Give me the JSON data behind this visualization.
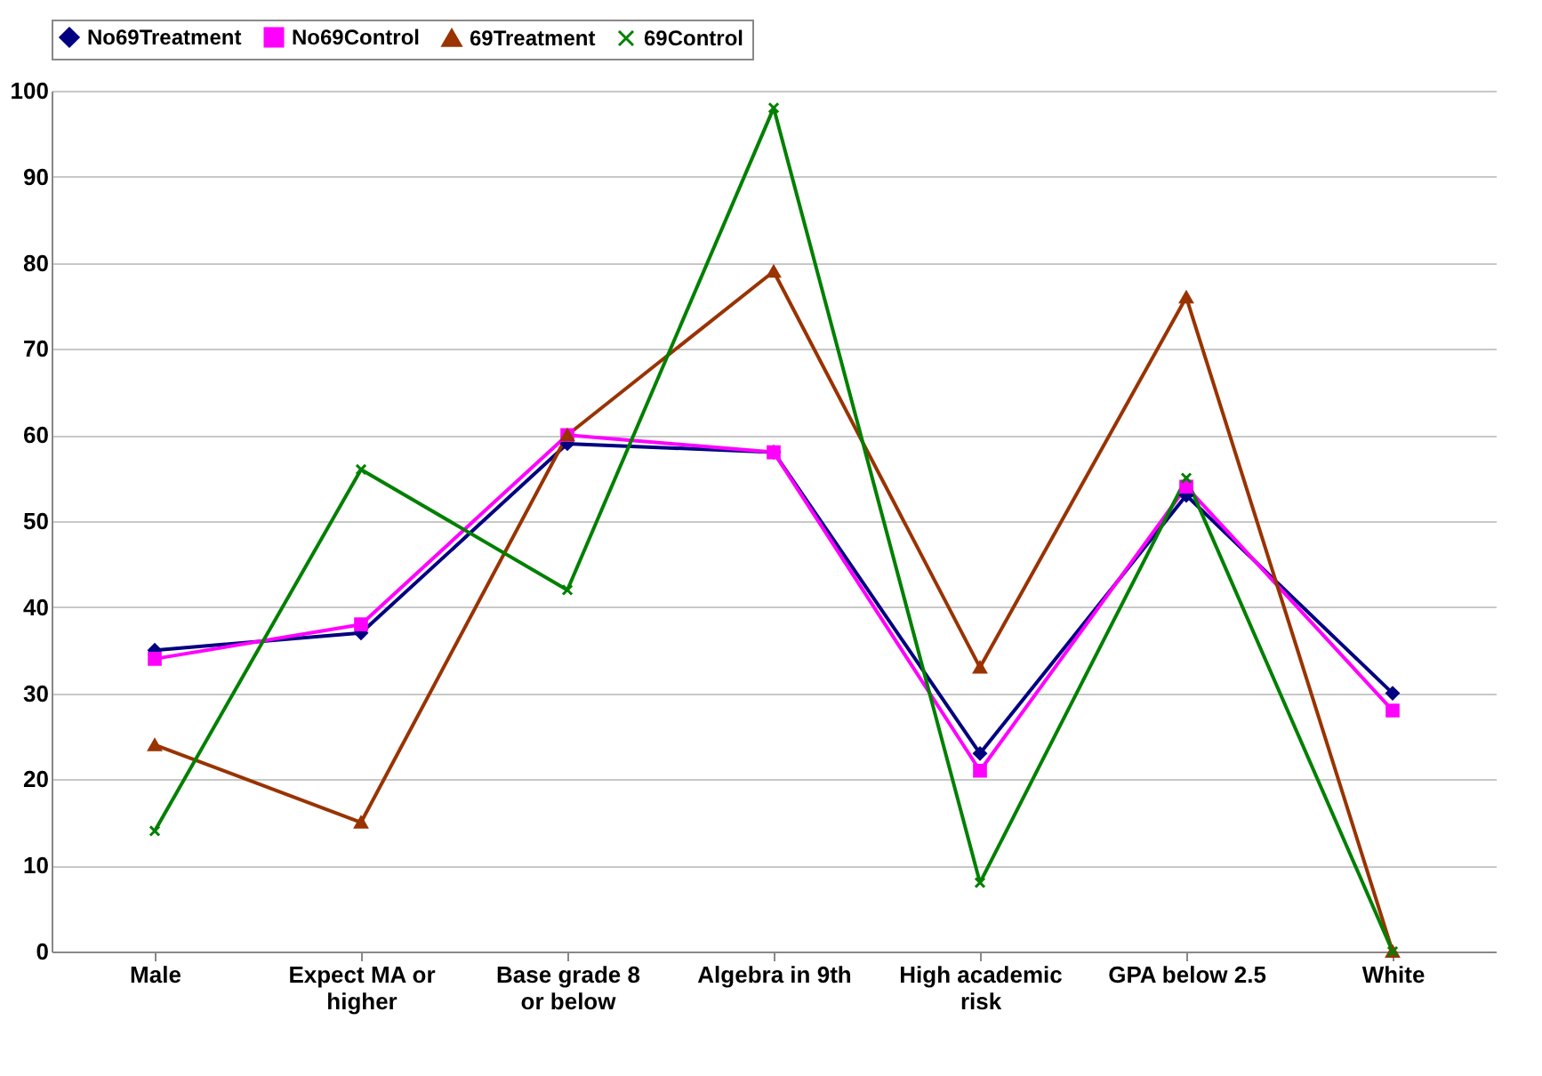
{
  "chart_data": {
    "type": "line",
    "categories": [
      "Male",
      "Expect MA or higher",
      "Base grade 8 or below",
      "Algebra in 9th",
      "High academic risk",
      "GPA below 2.5",
      "White"
    ],
    "series": [
      {
        "name": "No69Treatment",
        "color": "#000080",
        "marker": "diamond",
        "values": [
          35,
          37,
          59,
          58,
          23,
          53,
          30
        ]
      },
      {
        "name": "No69Control",
        "color": "#ff00ff",
        "marker": "square",
        "values": [
          34,
          38,
          60,
          58,
          21,
          54,
          28
        ]
      },
      {
        "name": "69Treatment",
        "color": "#993300",
        "marker": "triangle",
        "values": [
          24,
          15,
          60,
          79,
          33,
          76,
          0
        ]
      },
      {
        "name": "69Control",
        "color": "#008000",
        "marker": "cross",
        "values": [
          14,
          56,
          42,
          98,
          8,
          55,
          0
        ]
      }
    ],
    "ylim": [
      0,
      100
    ],
    "yticks": [
      0,
      10,
      20,
      30,
      40,
      50,
      60,
      70,
      80,
      90,
      100
    ],
    "grid": "y",
    "legend": "top"
  }
}
